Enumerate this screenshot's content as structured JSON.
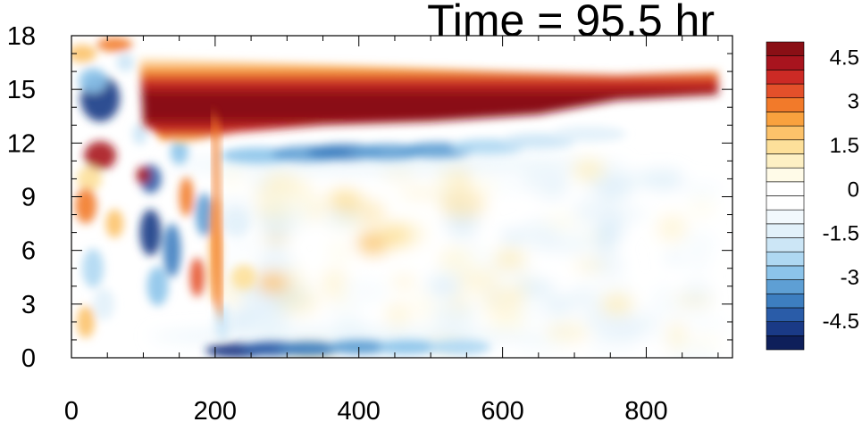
{
  "title": "Time = 95.5 hr",
  "chart_data": {
    "type": "heatmap",
    "title": "Time = 95.5 hr",
    "xlabel": "",
    "ylabel": "",
    "xlim": [
      0,
      920
    ],
    "ylim": [
      0,
      18
    ],
    "xticks": [
      0,
      200,
      400,
      600,
      800
    ],
    "yticks": [
      0,
      3,
      6,
      9,
      12,
      15,
      18
    ],
    "grid": false,
    "colorbar": {
      "position": "right",
      "levels": [
        -5.5,
        -5,
        -4.5,
        -4,
        -3.5,
        -3,
        -2.5,
        -2,
        -1.5,
        -1,
        -0.5,
        0,
        0.5,
        1,
        1.5,
        2,
        2.5,
        3,
        3.5,
        4,
        4.5,
        5
      ],
      "labels": [
        "4.5",
        "3",
        "1.5",
        "0",
        "-1.5",
        "-3",
        "-4.5"
      ],
      "label_values": [
        4.5,
        3,
        1.5,
        0,
        -1.5,
        -3,
        -4.5
      ],
      "colors": [
        "#0e1f5a",
        "#1a3a86",
        "#2a5ca8",
        "#3d7ec0",
        "#5e9fd4",
        "#8cc4ea",
        "#afd8f2",
        "#cce6f6",
        "#e2f1fa",
        "#f2f9fd",
        "#ffffff",
        "#ffffff",
        "#fffbe8",
        "#fdf0c4",
        "#fde09a",
        "#fcc26a",
        "#f9a13e",
        "#f27a2a",
        "#e4502a",
        "#cc2a25",
        "#a8141e",
        "#8a0f15"
      ]
    },
    "features": [
      {
        "name": "upper positive band",
        "x_range": [
          90,
          900
        ],
        "y_range": [
          13.5,
          16.8
        ],
        "value": 5.5
      },
      {
        "name": "blue band below upper band",
        "x_range": [
          200,
          700
        ],
        "y_range": [
          11,
          12.5
        ],
        "value": -3
      },
      {
        "name": "lower blue band",
        "x_range": [
          200,
          580
        ],
        "y_range": [
          0,
          1
        ],
        "value": -4
      },
      {
        "name": "early blue cell",
        "x": 40,
        "y": 14.5,
        "value": -5
      },
      {
        "name": "early red cell",
        "x": 40,
        "y": 11.3,
        "value": 4.5
      }
    ]
  }
}
